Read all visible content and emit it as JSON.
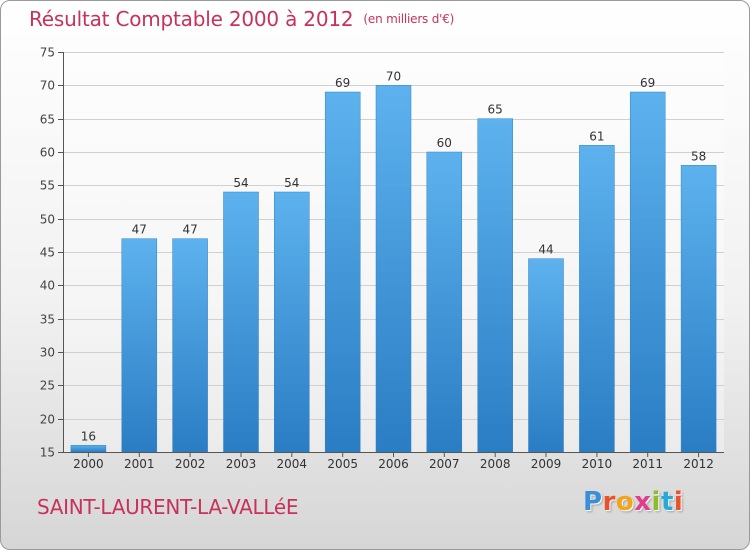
{
  "header": {
    "title": "Résultat Comptable 2000 à 2012",
    "subtitle": "(en milliers d'€)"
  },
  "footer": {
    "town": "SAINT-LAURENT-LA-VALLéE",
    "logo_letters": [
      "P",
      "r",
      "o",
      "x",
      "i",
      "t",
      "i"
    ]
  },
  "colors": {
    "title": "#c8325a",
    "bar_top": "#5db2ee",
    "bar_bottom": "#2a7dc3",
    "logo": [
      "#3a8fd8",
      "#e9532b",
      "#f2a51a",
      "#e23c8c",
      "#8bbd2a",
      "#2aa8d8",
      "#e9532b"
    ]
  },
  "chart_data": {
    "type": "bar",
    "title": "Résultat Comptable 2000 à 2012",
    "xlabel": "",
    "ylabel": "",
    "categories": [
      "2000",
      "2001",
      "2002",
      "2003",
      "2004",
      "2005",
      "2006",
      "2007",
      "2008",
      "2009",
      "2010",
      "2011",
      "2012"
    ],
    "values": [
      16,
      47,
      47,
      54,
      54,
      69,
      70,
      60,
      65,
      44,
      61,
      69,
      58
    ],
    "ylim": [
      15,
      75
    ],
    "yticks": [
      15,
      20,
      25,
      30,
      35,
      40,
      45,
      50,
      55,
      60,
      65,
      70,
      75
    ],
    "grid": true,
    "legend": "none"
  }
}
